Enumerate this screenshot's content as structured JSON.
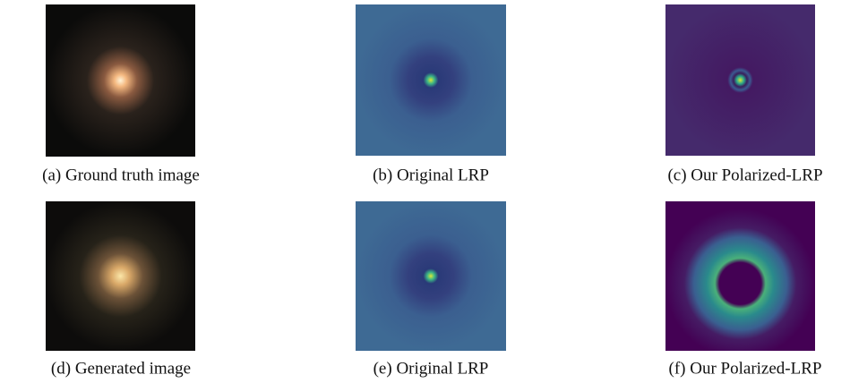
{
  "panels": [
    {
      "caption": "(a) Ground truth image"
    },
    {
      "caption": "(b) Original LRP"
    },
    {
      "caption": "(c) Our Polarized-LRP"
    },
    {
      "caption": "(d) Generated image"
    },
    {
      "caption": "(e) Original LRP"
    },
    {
      "caption": "(f) Our Polarized-LRP"
    }
  ]
}
